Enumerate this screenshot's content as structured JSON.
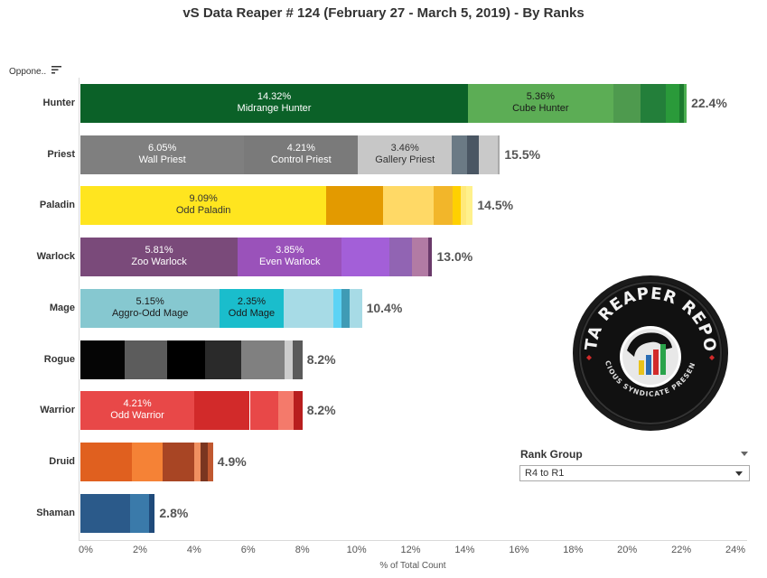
{
  "chart_data": {
    "type": "bar",
    "orientation": "horizontal",
    "stacked": true,
    "title": "vS Data Reaper #  124 (February 27 - March 5, 2019) - By Ranks",
    "row_header": "Oppone..",
    "xlabel": "% of Total Count",
    "xlim": [
      0,
      24
    ],
    "x_ticks": [
      "0%",
      "2%",
      "4%",
      "6%",
      "8%",
      "10%",
      "12%",
      "14%",
      "16%",
      "18%",
      "20%",
      "22%",
      "24%"
    ],
    "grid": false,
    "rows": [
      {
        "class": "Hunter",
        "total_label": "22.4%",
        "segments": [
          {
            "value": 14.32,
            "color": "#0b6128",
            "value_label": "14.32%",
            "name": "Midrange Hunter",
            "text_color": "#ffffff"
          },
          {
            "value": 5.36,
            "color": "#5cad55",
            "value_label": "5.36%",
            "name": "Cube Hunter",
            "text_color": "#1a1a1a"
          },
          {
            "value": 1.0,
            "color": "#4e9a4e"
          },
          {
            "value": 0.95,
            "color": "#237f3a"
          },
          {
            "value": 0.5,
            "color": "#2a9a3a"
          },
          {
            "value": 0.15,
            "color": "#1c7a2e"
          },
          {
            "value": 0.12,
            "color": "#4caf50"
          }
        ]
      },
      {
        "class": "Priest",
        "total_label": "15.5%",
        "segments": [
          {
            "value": 6.05,
            "color": "#7f7f7f",
            "value_label": "6.05%",
            "name": "Wall Priest",
            "text_color": "#ffffff"
          },
          {
            "value": 4.21,
            "color": "#7a7a7a",
            "value_label": "4.21%",
            "name": "Control Priest",
            "text_color": "#ffffff"
          },
          {
            "value": 3.46,
            "color": "#c7c7c7",
            "value_label": "3.46%",
            "name": "Gallery Priest",
            "text_color": "#333333"
          },
          {
            "value": 0.55,
            "color": "#6b7a85"
          },
          {
            "value": 0.45,
            "color": "#4a5663"
          },
          {
            "value": 0.7,
            "color": "#c9c9c9"
          },
          {
            "value": 0.08,
            "color": "#aaaaaa"
          }
        ]
      },
      {
        "class": "Paladin",
        "total_label": "14.5%",
        "segments": [
          {
            "value": 9.09,
            "color": "#ffe51f",
            "value_label": "9.09%",
            "name": "Odd Paladin",
            "text_color": "#333333"
          },
          {
            "value": 2.1,
            "color": "#e39a00"
          },
          {
            "value": 1.85,
            "color": "#ffd966"
          },
          {
            "value": 0.7,
            "color": "#f2b62a"
          },
          {
            "value": 0.3,
            "color": "#ffd000"
          },
          {
            "value": 0.2,
            "color": "#ffe97a"
          },
          {
            "value": 0.26,
            "color": "#fff18c"
          }
        ]
      },
      {
        "class": "Warlock",
        "total_label": "13.0%",
        "segments": [
          {
            "value": 5.81,
            "color": "#7a4a7a",
            "value_label": "5.81%",
            "name": "Zoo Warlock",
            "text_color": "#ffffff"
          },
          {
            "value": 3.85,
            "color": "#9a52ba",
            "value_label": "3.85%",
            "name": "Even Warlock",
            "text_color": "#ffffff"
          },
          {
            "value": 1.75,
            "color": "#a35fd8"
          },
          {
            "value": 0.85,
            "color": "#9164b3"
          },
          {
            "value": 0.6,
            "color": "#b27ba4"
          },
          {
            "value": 0.14,
            "color": "#6a3a6a"
          }
        ]
      },
      {
        "class": "Mage",
        "total_label": "10.4%",
        "segments": [
          {
            "value": 5.15,
            "color": "#86c8d0",
            "value_label": "5.15%",
            "name": "Aggro-Odd Mage",
            "text_color": "#1a1a1a"
          },
          {
            "value": 2.35,
            "color": "#1abdcc",
            "value_label": "2.35%",
            "name": "Odd Mage",
            "text_color": "#1a1a1a"
          },
          {
            "value": 1.85,
            "color": "#a7dbe6"
          },
          {
            "value": 0.3,
            "color": "#5cd3f5"
          },
          {
            "value": 0.3,
            "color": "#3f9bb5"
          },
          {
            "value": 0.45,
            "color": "#a7dbe6"
          }
        ]
      },
      {
        "class": "Rogue",
        "total_label": "8.2%",
        "segments": [
          {
            "value": 1.65,
            "color": "#050505"
          },
          {
            "value": 1.55,
            "color": "#5c5c5c"
          },
          {
            "value": 1.4,
            "color": "#000000"
          },
          {
            "value": 1.35,
            "color": "#2a2a2a"
          },
          {
            "value": 1.6,
            "color": "#808080"
          },
          {
            "value": 0.3,
            "color": "#cccccc"
          },
          {
            "value": 0.35,
            "color": "#5a5a5a"
          }
        ]
      },
      {
        "class": "Warrior",
        "total_label": "8.2%",
        "segments": [
          {
            "value": 4.21,
            "color": "#e84848",
            "value_label": "4.21%",
            "name": "Odd Warrior",
            "text_color": "#ffffff"
          },
          {
            "value": 2.05,
            "color": "#d22a2a"
          },
          {
            "value": 1.05,
            "color": "#e84848"
          },
          {
            "value": 0.55,
            "color": "#f47a6b"
          },
          {
            "value": 0.34,
            "color": "#b81e1e"
          }
        ]
      },
      {
        "class": "Druid",
        "total_label": "4.9%",
        "segments": [
          {
            "value": 1.9,
            "color": "#e0601f"
          },
          {
            "value": 1.15,
            "color": "#f58236"
          },
          {
            "value": 1.15,
            "color": "#a84524"
          },
          {
            "value": 0.25,
            "color": "#f09060"
          },
          {
            "value": 0.25,
            "color": "#7a3520"
          },
          {
            "value": 0.2,
            "color": "#c05830"
          }
        ]
      },
      {
        "class": "Shaman",
        "total_label": "2.8%",
        "segments": [
          {
            "value": 1.85,
            "color": "#2b5a8a"
          },
          {
            "value": 0.7,
            "color": "#3a7aaa"
          },
          {
            "value": 0.2,
            "color": "#1f4a7a"
          }
        ]
      }
    ]
  },
  "rank_filter": {
    "title": "Rank Group",
    "selected": "R4 to R1"
  },
  "logo": {
    "title_text": "DATA REAPER REPORT",
    "subtitle_text": "VICIOUS SYNDICATE PRESENTS"
  }
}
